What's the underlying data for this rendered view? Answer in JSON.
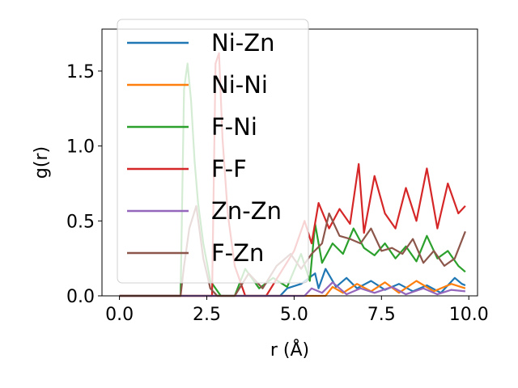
{
  "chart_data": {
    "type": "line",
    "xlabel": "r (Å)",
    "ylabel": "g(r)",
    "xlim": [
      -0.5,
      10.25
    ],
    "ylim": [
      0.0,
      1.78
    ],
    "xticks": [
      "0.0",
      "2.5",
      "5.0",
      "7.5",
      "10.0"
    ],
    "yticks": [
      "0.0",
      "0.5",
      "1.0",
      "1.5"
    ],
    "legend_position": "upper-left",
    "series": [
      {
        "name": "Ni-Zn",
        "color": "#1f77b4",
        "points": [
          [
            0.0,
            0
          ],
          [
            4.6,
            0
          ],
          [
            4.8,
            0.05
          ],
          [
            5.2,
            0.08
          ],
          [
            5.6,
            0.15
          ],
          [
            5.7,
            0.05
          ],
          [
            5.9,
            0.18
          ],
          [
            6.2,
            0.06
          ],
          [
            6.5,
            0.12
          ],
          [
            6.8,
            0.05
          ],
          [
            7.2,
            0.1
          ],
          [
            7.6,
            0.04
          ],
          [
            8.0,
            0.08
          ],
          [
            8.4,
            0.03
          ],
          [
            8.8,
            0.07
          ],
          [
            9.2,
            0.02
          ],
          [
            9.6,
            0.12
          ],
          [
            9.8,
            0.08
          ],
          [
            9.9,
            0.07
          ]
        ]
      },
      {
        "name": "Ni-Ni",
        "color": "#ff7f0e",
        "points": [
          [
            0.0,
            0
          ],
          [
            5.9,
            0
          ],
          [
            6.1,
            0.06
          ],
          [
            6.4,
            0.02
          ],
          [
            6.8,
            0.08
          ],
          [
            7.2,
            0.03
          ],
          [
            7.6,
            0.09
          ],
          [
            8.0,
            0.02
          ],
          [
            8.5,
            0.1
          ],
          [
            9.0,
            0.03
          ],
          [
            9.5,
            0.08
          ],
          [
            9.9,
            0.05
          ]
        ]
      },
      {
        "name": "F-Ni",
        "color": "#2ca02c",
        "points": [
          [
            0.0,
            0
          ],
          [
            1.75,
            0
          ],
          [
            1.85,
            1.38
          ],
          [
            1.95,
            1.55
          ],
          [
            2.05,
            1.3
          ],
          [
            2.15,
            0.9
          ],
          [
            2.25,
            0.62
          ],
          [
            2.4,
            0.35
          ],
          [
            2.6,
            0.1
          ],
          [
            2.9,
            0
          ],
          [
            3.3,
            0
          ],
          [
            3.6,
            0.18
          ],
          [
            4.0,
            0.05
          ],
          [
            4.4,
            0.12
          ],
          [
            4.8,
            0.06
          ],
          [
            5.2,
            0.28
          ],
          [
            5.45,
            0.1
          ],
          [
            5.6,
            0.48
          ],
          [
            5.8,
            0.22
          ],
          [
            6.1,
            0.35
          ],
          [
            6.4,
            0.28
          ],
          [
            6.7,
            0.45
          ],
          [
            7.0,
            0.32
          ],
          [
            7.3,
            0.27
          ],
          [
            7.6,
            0.35
          ],
          [
            7.9,
            0.25
          ],
          [
            8.2,
            0.33
          ],
          [
            8.5,
            0.23
          ],
          [
            8.8,
            0.4
          ],
          [
            9.1,
            0.25
          ],
          [
            9.4,
            0.3
          ],
          [
            9.7,
            0.2
          ],
          [
            9.9,
            0.16
          ]
        ]
      },
      {
        "name": "F-F",
        "color": "#d62728",
        "points": [
          [
            0.0,
            0
          ],
          [
            2.65,
            0
          ],
          [
            2.75,
            1.55
          ],
          [
            2.85,
            1.62
          ],
          [
            2.95,
            1.05
          ],
          [
            3.1,
            0.55
          ],
          [
            3.3,
            0.2
          ],
          [
            3.6,
            0
          ],
          [
            4.2,
            0
          ],
          [
            4.6,
            0.15
          ],
          [
            5.0,
            0.3
          ],
          [
            5.3,
            0.5
          ],
          [
            5.5,
            0.35
          ],
          [
            5.7,
            0.62
          ],
          [
            6.0,
            0.45
          ],
          [
            6.3,
            0.58
          ],
          [
            6.6,
            0.48
          ],
          [
            6.85,
            0.88
          ],
          [
            7.0,
            0.42
          ],
          [
            7.3,
            0.8
          ],
          [
            7.6,
            0.55
          ],
          [
            7.9,
            0.45
          ],
          [
            8.2,
            0.72
          ],
          [
            8.5,
            0.5
          ],
          [
            8.8,
            0.85
          ],
          [
            9.1,
            0.45
          ],
          [
            9.4,
            0.75
          ],
          [
            9.7,
            0.55
          ],
          [
            9.9,
            0.6
          ]
        ]
      },
      {
        "name": "Zn-Zn",
        "color": "#9467bd",
        "points": [
          [
            0.0,
            0
          ],
          [
            5.3,
            0
          ],
          [
            5.5,
            0.05
          ],
          [
            5.8,
            0.02
          ],
          [
            6.1,
            0.09
          ],
          [
            6.5,
            0.01
          ],
          [
            6.9,
            0.05
          ],
          [
            7.3,
            0.02
          ],
          [
            7.8,
            0.06
          ],
          [
            8.2,
            0.01
          ],
          [
            8.7,
            0.05
          ],
          [
            9.1,
            0.01
          ],
          [
            9.5,
            0.04
          ],
          [
            9.9,
            0.03
          ]
        ]
      },
      {
        "name": "F-Zn",
        "color": "#8c564b",
        "points": [
          [
            0.0,
            0
          ],
          [
            1.75,
            0
          ],
          [
            1.85,
            0.2
          ],
          [
            2.0,
            0.45
          ],
          [
            2.2,
            0.6
          ],
          [
            2.4,
            0.25
          ],
          [
            2.6,
            0.05
          ],
          [
            2.8,
            0
          ],
          [
            3.3,
            0
          ],
          [
            3.7,
            0.15
          ],
          [
            4.1,
            0.05
          ],
          [
            4.5,
            0.2
          ],
          [
            4.9,
            0.28
          ],
          [
            5.2,
            0.18
          ],
          [
            5.5,
            0.28
          ],
          [
            5.8,
            0.35
          ],
          [
            6.0,
            0.55
          ],
          [
            6.3,
            0.4
          ],
          [
            6.6,
            0.38
          ],
          [
            6.9,
            0.35
          ],
          [
            7.2,
            0.45
          ],
          [
            7.5,
            0.3
          ],
          [
            7.8,
            0.32
          ],
          [
            8.1,
            0.28
          ],
          [
            8.4,
            0.38
          ],
          [
            8.7,
            0.22
          ],
          [
            9.0,
            0.3
          ],
          [
            9.3,
            0.2
          ],
          [
            9.6,
            0.25
          ],
          [
            9.9,
            0.43
          ]
        ]
      }
    ]
  }
}
